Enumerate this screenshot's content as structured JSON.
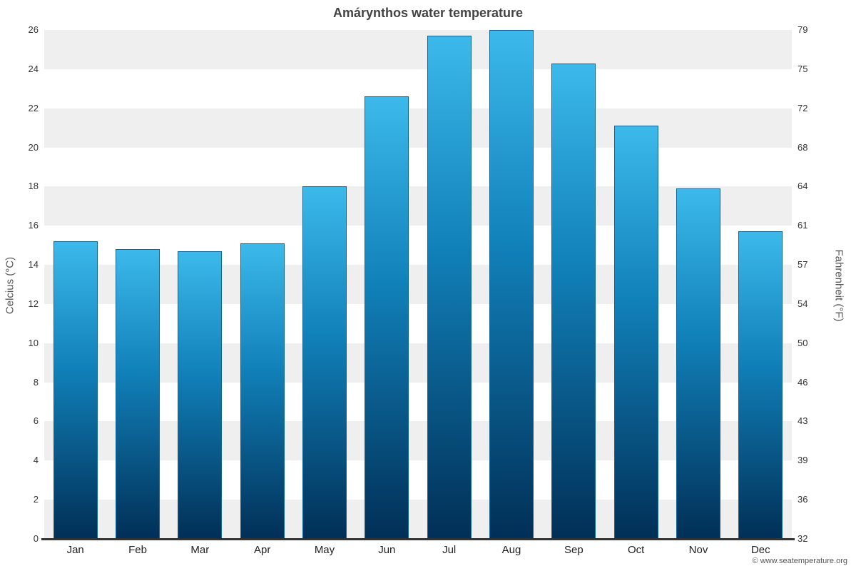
{
  "title": "Amárynthos water temperature",
  "copyright": "© www.seatemperature.org",
  "chart_data": {
    "type": "bar",
    "title": "Amárynthos water temperature",
    "categories": [
      "Jan",
      "Feb",
      "Mar",
      "Apr",
      "May",
      "Jun",
      "Jul",
      "Aug",
      "Sep",
      "Oct",
      "Nov",
      "Dec"
    ],
    "values": [
      15.2,
      14.8,
      14.7,
      15.1,
      18.0,
      22.6,
      25.7,
      26.0,
      24.3,
      21.1,
      17.9,
      15.7
    ],
    "ylabel_left": "Celcius (°C)",
    "ylabel_right": "Fahrenheit (°F)",
    "ylim": [
      0,
      26
    ],
    "yticks_celsius": [
      0,
      2,
      4,
      6,
      8,
      10,
      12,
      14,
      16,
      18,
      20,
      22,
      24,
      26
    ],
    "yticks_fahrenheit": [
      32,
      36,
      39,
      43,
      46,
      50,
      54,
      57,
      61,
      64,
      68,
      72,
      75,
      79
    ],
    "grid": "striped-bands",
    "legend": "none",
    "colors": {
      "bar_top": "#3cb9ea",
      "bar_mid": "#1181ba",
      "bar_bottom": "#012f56",
      "bar_border": "#0d6598",
      "stripe": "#efefef",
      "axis_line": "#333333",
      "title_text": "#444444",
      "tick_text": "#333333"
    }
  }
}
